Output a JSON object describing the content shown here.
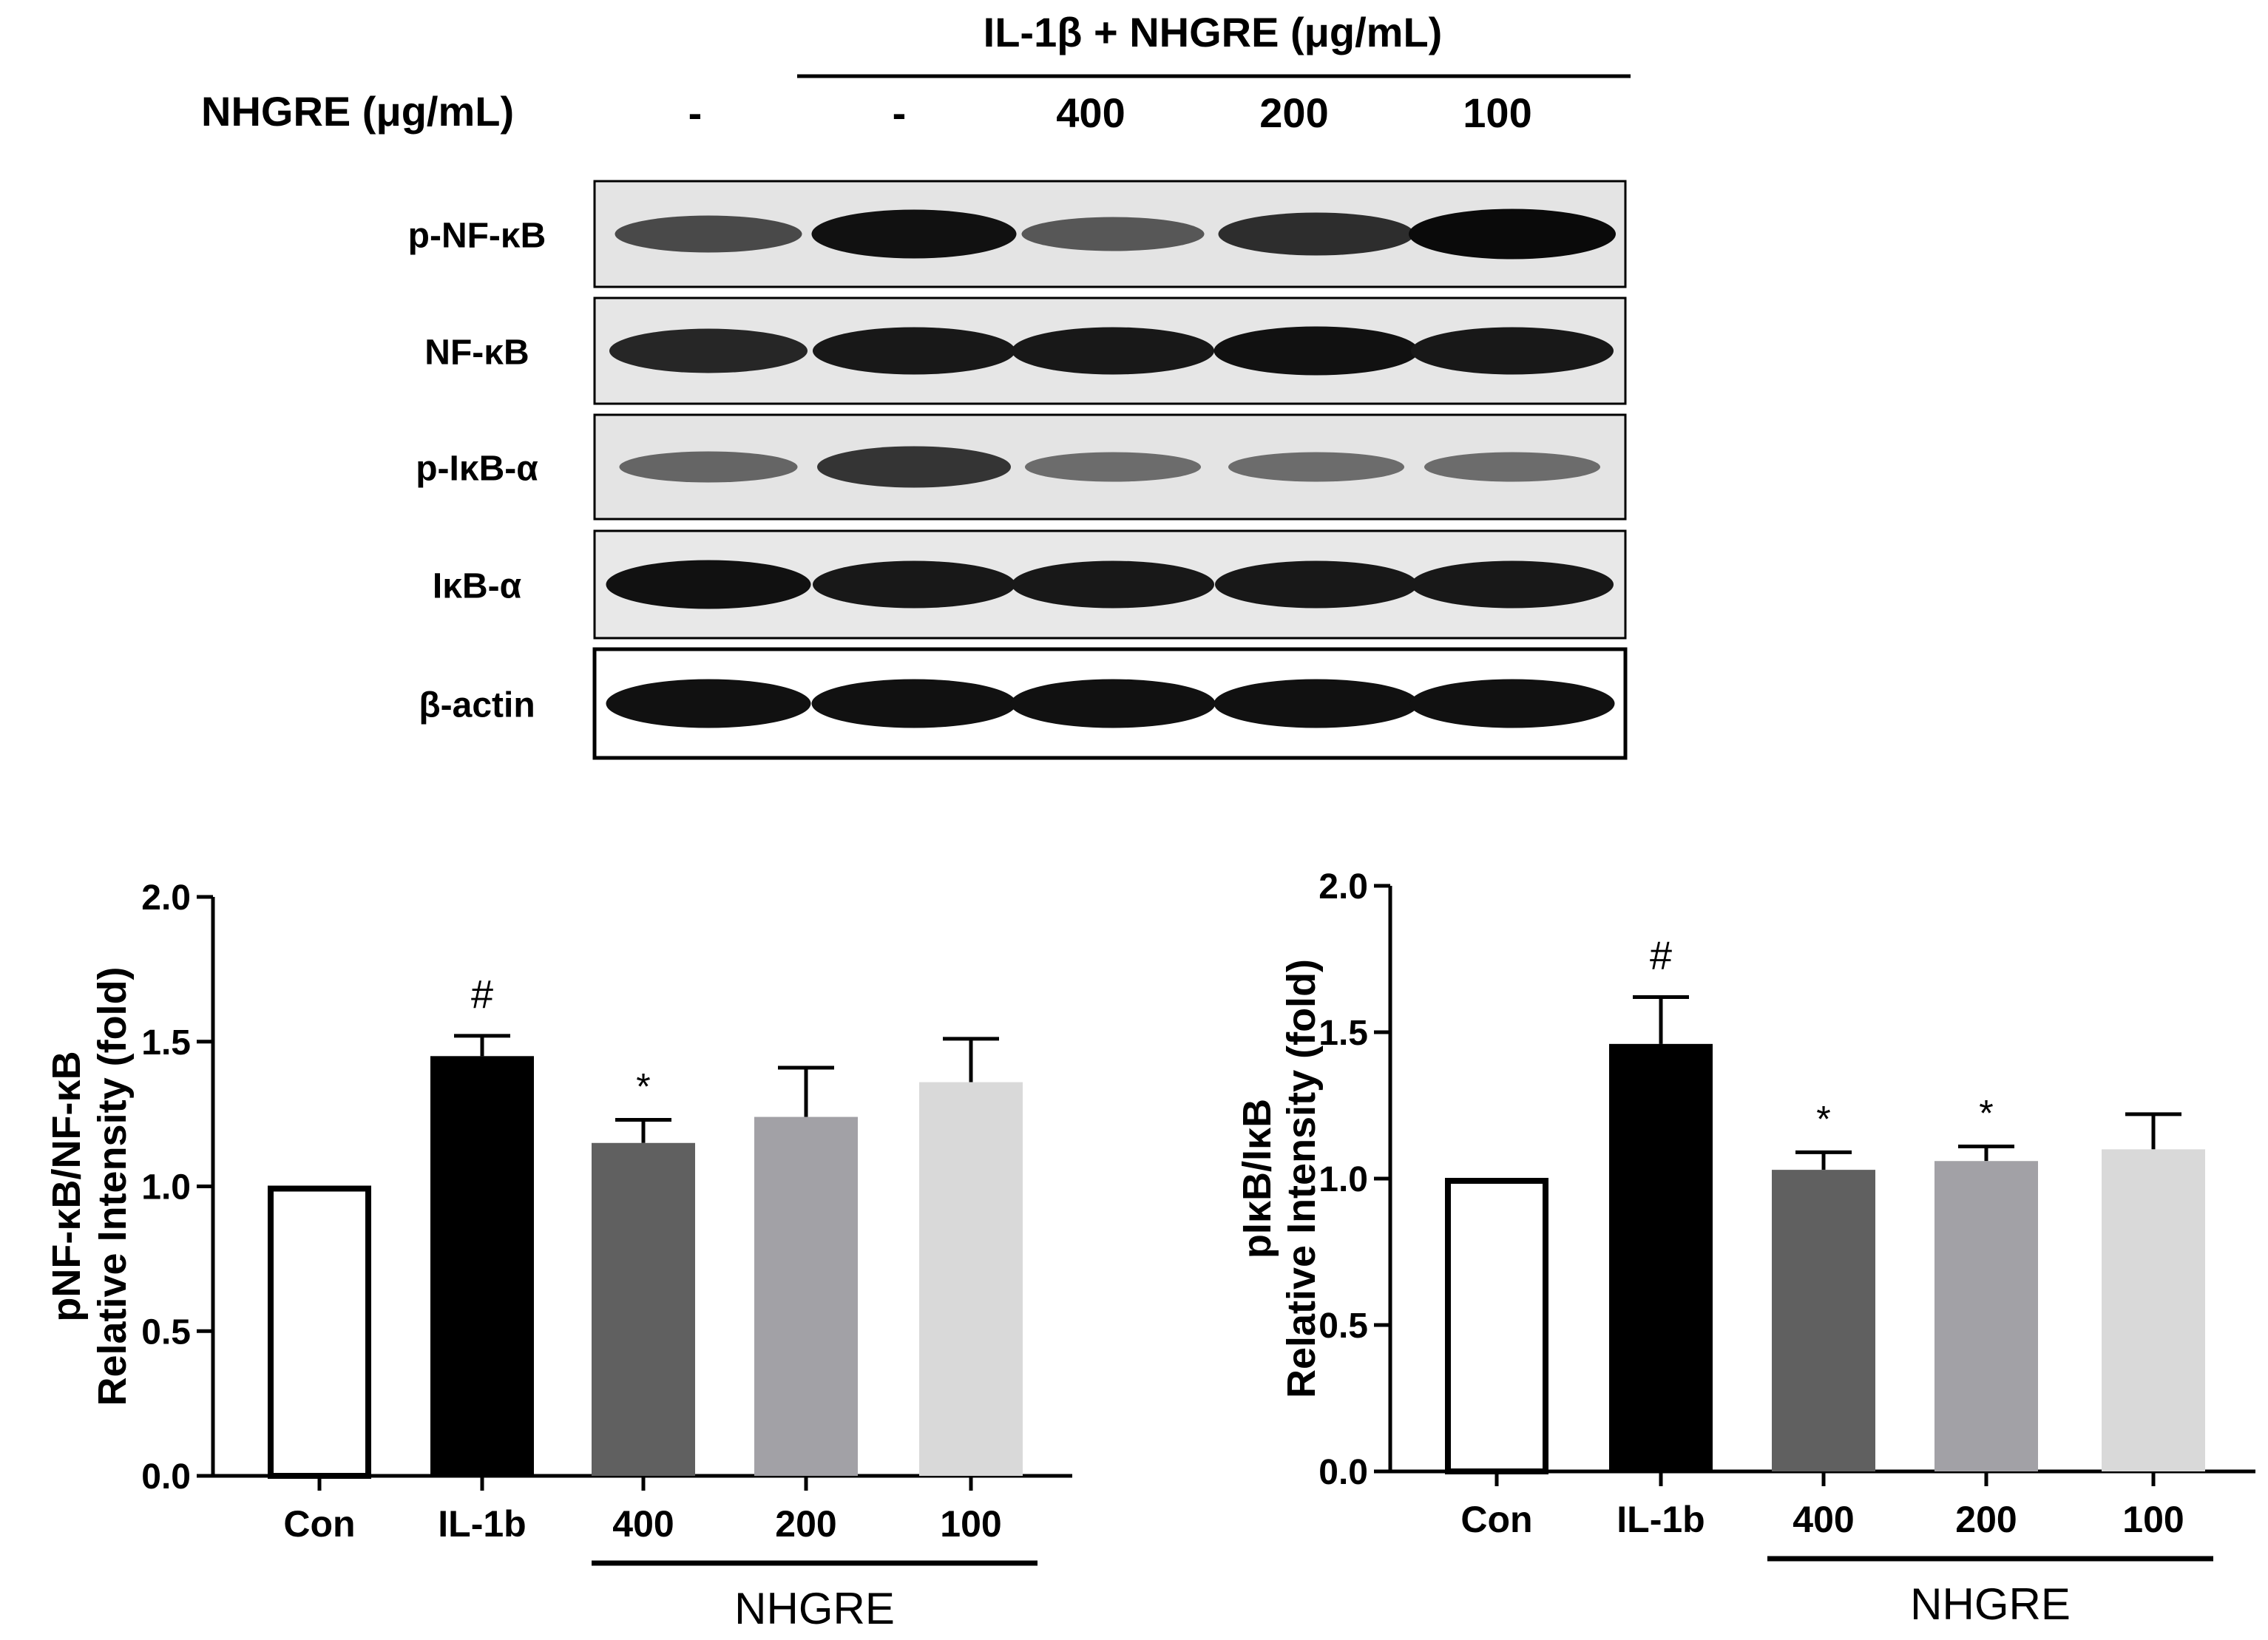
{
  "blot": {
    "group_header": "IL-1β + NHGRE (μg/mL)",
    "row_label": "NHGRE (μg/mL)",
    "lane_labels": [
      "-",
      "-",
      "400",
      "200",
      "100"
    ],
    "bands": [
      {
        "label": "p-NF-κB",
        "intensity": [
          0.55,
          0.95,
          0.45,
          0.75,
          1.0
        ]
      },
      {
        "label": "NF-κB",
        "intensity": [
          0.8,
          0.9,
          0.9,
          0.95,
          0.9
        ]
      },
      {
        "label": "p-IκB-α",
        "intensity": [
          0.35,
          0.7,
          0.3,
          0.3,
          0.3
        ]
      },
      {
        "label": "IκB-α",
        "intensity": [
          0.95,
          0.9,
          0.9,
          0.9,
          0.9
        ]
      },
      {
        "label": "β-actin",
        "intensity": [
          0.95,
          0.95,
          0.95,
          0.95,
          0.95
        ]
      }
    ]
  },
  "chart_data": [
    {
      "type": "bar",
      "categories": [
        "Con",
        "IL-1b",
        "400",
        "200",
        "100"
      ],
      "values": [
        1.0,
        1.45,
        1.15,
        1.24,
        1.36
      ],
      "errors": [
        0.0,
        0.07,
        0.08,
        0.17,
        0.15
      ],
      "annotations": [
        "",
        "#",
        "*",
        "",
        ""
      ],
      "colors": [
        "#ffffff",
        "#000000",
        "#606060",
        "#a2a1a6",
        "#d9d9d9"
      ],
      "ylabel_line1": "pNF-κB/NF-κB",
      "ylabel_line2": "Relative Intensity (fold)",
      "yticks": [
        "0.0",
        "0.5",
        "1.0",
        "1.5",
        "2.0"
      ],
      "ylim": [
        0,
        2.0
      ],
      "group_label": "NHGRE"
    },
    {
      "type": "bar",
      "categories": [
        "Con",
        "IL-1b",
        "400",
        "200",
        "100"
      ],
      "values": [
        1.0,
        1.46,
        1.03,
        1.06,
        1.1
      ],
      "errors": [
        0.0,
        0.16,
        0.06,
        0.05,
        0.12
      ],
      "annotations": [
        "",
        "#",
        "*",
        "*",
        ""
      ],
      "colors": [
        "#ffffff",
        "#000000",
        "#606060",
        "#a2a1a6",
        "#d9d9d9"
      ],
      "ylabel_line1": "pIκB/IκB",
      "ylabel_line2": "Relative Intensity (fold)",
      "yticks": [
        "0.0",
        "0.5",
        "1.0",
        "1.5",
        "2.0"
      ],
      "ylim": [
        0,
        2.0
      ],
      "group_label": "NHGRE"
    }
  ]
}
